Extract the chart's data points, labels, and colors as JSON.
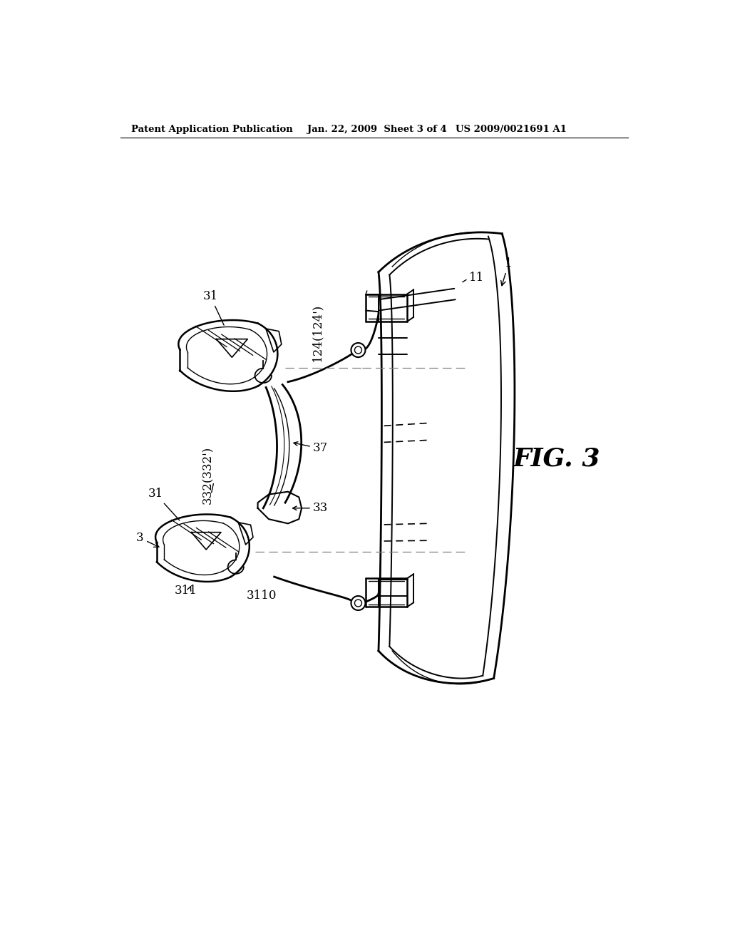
{
  "background_color": "#ffffff",
  "header_left": "Patent Application Publication",
  "header_mid": "Jan. 22, 2009  Sheet 3 of 4",
  "header_right": "US 2009/0021691 A1",
  "fig_label": "FIG. 3",
  "labels": {
    "31_top": "31",
    "31_bot": "31",
    "3": "3",
    "37": "37",
    "33": "33",
    "332": "332(332')",
    "311": "311",
    "3110": "3110",
    "124": "124(124')",
    "1": "1",
    "11": "11"
  }
}
